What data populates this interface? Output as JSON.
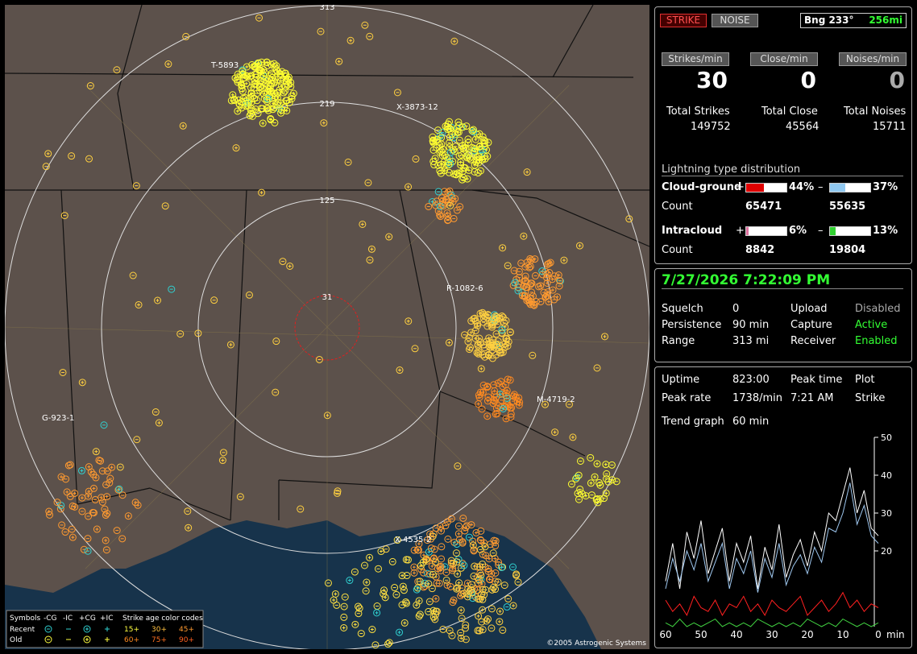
{
  "chart_data": {
    "type": "line",
    "x": [
      60,
      58,
      56,
      54,
      52,
      50,
      48,
      46,
      44,
      42,
      40,
      38,
      36,
      34,
      32,
      30,
      28,
      26,
      24,
      22,
      20,
      18,
      16,
      14,
      12,
      10,
      8,
      6,
      4,
      2,
      0
    ],
    "series": [
      {
        "color": "#ffffff",
        "values": [
          12,
          22,
          10,
          25,
          18,
          28,
          14,
          20,
          26,
          12,
          22,
          17,
          24,
          10,
          21,
          15,
          27,
          13,
          19,
          23,
          16,
          25,
          20,
          30,
          28,
          35,
          42,
          30,
          36,
          26,
          24
        ]
      },
      {
        "color": "#9fc8f0",
        "values": [
          10,
          18,
          12,
          20,
          15,
          22,
          12,
          17,
          22,
          10,
          18,
          14,
          20,
          9,
          18,
          13,
          22,
          11,
          16,
          19,
          14,
          21,
          17,
          26,
          25,
          30,
          38,
          27,
          32,
          24,
          22
        ]
      },
      {
        "color": "#ff2020",
        "values": [
          7,
          4,
          6,
          3,
          8,
          5,
          4,
          7,
          3,
          6,
          5,
          8,
          4,
          6,
          3,
          7,
          5,
          4,
          6,
          8,
          3,
          5,
          7,
          4,
          6,
          9,
          5,
          7,
          4,
          6,
          5
        ]
      },
      {
        "color": "#40d040",
        "values": [
          1,
          0,
          2,
          0,
          1,
          0,
          1,
          2,
          0,
          1,
          0,
          1,
          0,
          2,
          1,
          0,
          1,
          0,
          1,
          0,
          2,
          1,
          0,
          1,
          0,
          2,
          1,
          0,
          1,
          0,
          1
        ]
      }
    ],
    "xlim": [
      60,
      0
    ],
    "xticks": [
      60,
      50,
      40,
      30,
      20,
      10,
      0
    ],
    "xlabel": "min",
    "ylim": [
      0,
      50
    ],
    "yticks": [
      20,
      30,
      40,
      50
    ]
  },
  "header": {
    "strike": "STRIKE",
    "noise": "NOISE",
    "bearing": "Bng 233°",
    "range": "256mi"
  },
  "rates": [
    {
      "label": "Strikes/min",
      "value": "30",
      "total_label": "Total Strikes",
      "total": "149752"
    },
    {
      "label": "Close/min",
      "value": "0",
      "total_label": "Total Close",
      "total": "45564"
    },
    {
      "label": "Noises/min",
      "value": "0",
      "total_label": "Total Noises",
      "total": "15711"
    }
  ],
  "distribution": {
    "title": "Lightning type distribution",
    "rows": [
      {
        "label": "Cloud-ground",
        "plus": "+",
        "pos": {
          "value": 44,
          "label": "44%"
        },
        "minus": "–",
        "neg": {
          "value": 37,
          "label": "37%"
        },
        "count_label": "Count",
        "pos_count": "65471",
        "neg_count": "55635"
      },
      {
        "label": "Intracloud",
        "plus": "+",
        "pos": {
          "value": 6,
          "label": "6%"
        },
        "minus": "–",
        "neg": {
          "value": 13,
          "label": "13%"
        },
        "count_label": "Count",
        "pos_count": "8842",
        "neg_count": "19804"
      }
    ]
  },
  "status": {
    "datetime": "7/27/2026 7:22:09 PM",
    "rows": [
      [
        "Squelch",
        "0",
        "Upload",
        "Disabled"
      ],
      [
        "Persistence",
        "90 min",
        "Capture",
        "Active"
      ],
      [
        "Range",
        "313 mi",
        "Receiver",
        "Enabled"
      ]
    ]
  },
  "stats": {
    "rows": [
      [
        "Uptime",
        "823:00",
        "Peak time",
        "Plot"
      ],
      [
        "Peak rate",
        "1738/min",
        "7:21 AM",
        "Strike"
      ]
    ],
    "trend_label": "Trend graph",
    "trend_value": "60 min"
  },
  "map": {
    "rings": [
      "313",
      "219",
      "125",
      "31"
    ],
    "labels": [
      "T-5893",
      "X-3873-12",
      "R-1082-6",
      "M-4719-2",
      "G-923-1",
      "X-4535-2"
    ],
    "copyright": "©2005 Astrogenic Systems",
    "legend": {
      "symbols": "Symbols",
      "cols": [
        "-CG",
        "-IC",
        "+CG",
        "+IC"
      ],
      "age_title": "Strike age color codes",
      "recent": "Recent",
      "old": "Old",
      "recent_ages": [
        "15+",
        "30+",
        "45+"
      ],
      "old_ages": [
        "60+",
        "75+",
        "90+"
      ]
    }
  }
}
